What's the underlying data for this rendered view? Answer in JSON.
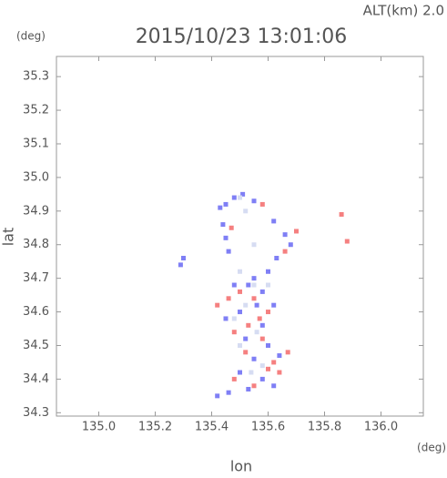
{
  "chart_data": {
    "type": "scatter",
    "title": "2015/10/23 13:01:06",
    "altitude_label": "ALT(km)  2.0",
    "y_unit": "(deg)",
    "x_unit": "(deg)",
    "xlabel": "lon",
    "ylabel": "lat",
    "xlim": [
      134.85,
      136.15
    ],
    "ylim": [
      34.29,
      35.36
    ],
    "xticks": [
      {
        "value": 135.0,
        "label": "135.0"
      },
      135.2,
      135.4,
      135.6,
      135.8,
      {
        "value": 136.0,
        "label": "136.0"
      }
    ],
    "yticks": [
      34.3,
      34.4,
      34.5,
      34.6,
      34.7,
      34.8,
      34.9,
      {
        "value": 35.0,
        "label": "35.0"
      },
      35.1,
      35.2,
      35.3
    ],
    "series": [
      {
        "color": "#7f7ff5",
        "x": [
          135.48,
          135.51,
          135.45,
          135.43,
          135.55,
          135.44,
          135.45,
          135.46,
          135.62,
          135.66,
          135.68,
          135.63,
          135.6,
          135.55,
          135.48,
          135.58,
          135.62,
          135.5,
          135.45,
          135.58,
          135.52,
          135.6,
          135.55,
          135.5,
          135.58,
          135.62,
          135.46,
          135.42,
          135.53,
          135.3,
          135.29,
          135.64,
          135.56,
          135.53
        ],
        "y": [
          34.94,
          34.95,
          34.92,
          34.91,
          34.93,
          34.86,
          34.82,
          34.78,
          34.87,
          34.83,
          34.8,
          34.76,
          34.72,
          34.7,
          34.68,
          34.66,
          34.62,
          34.6,
          34.58,
          34.56,
          34.52,
          34.5,
          34.46,
          34.42,
          34.4,
          34.38,
          34.36,
          34.35,
          34.37,
          34.76,
          34.74,
          34.47,
          34.62,
          34.68
        ]
      },
      {
        "color": "#f58080",
        "x": [
          135.58,
          135.86,
          135.88,
          135.47,
          135.66,
          135.7,
          135.5,
          135.55,
          135.46,
          135.57,
          135.53,
          135.6,
          135.62,
          135.64,
          135.6,
          135.52,
          135.48,
          135.55,
          135.67,
          135.42,
          135.58,
          135.48
        ],
        "y": [
          34.92,
          34.89,
          34.81,
          34.85,
          34.78,
          34.84,
          34.66,
          34.64,
          34.64,
          34.58,
          34.56,
          34.6,
          34.45,
          34.42,
          34.43,
          34.48,
          34.4,
          34.38,
          34.48,
          34.62,
          34.52,
          34.54
        ]
      },
      {
        "color": "#d6dcf2",
        "x": [
          135.5,
          135.52,
          135.55,
          135.5,
          135.55,
          135.52,
          135.56,
          135.5,
          135.58,
          135.54,
          135.48,
          135.6
        ],
        "y": [
          34.94,
          34.9,
          34.8,
          34.72,
          34.68,
          34.62,
          34.54,
          34.5,
          34.44,
          34.42,
          34.58,
          34.68
        ]
      }
    ]
  }
}
